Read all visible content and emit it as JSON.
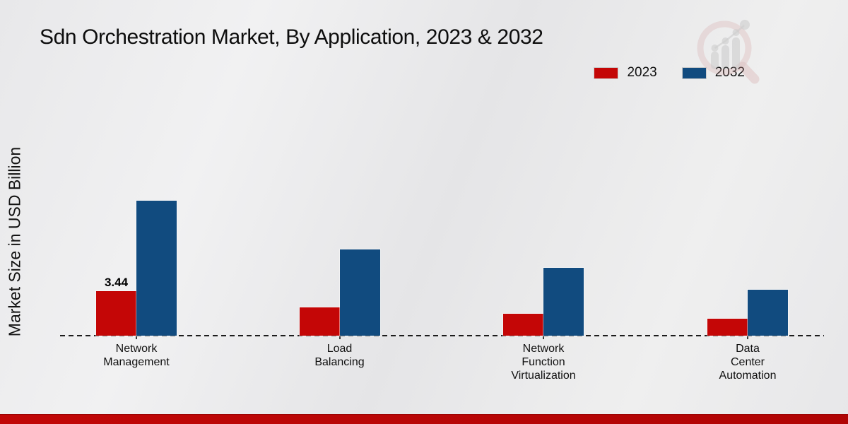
{
  "title": "Sdn Orchestration Market, By Application, 2023 & 2032",
  "y_axis_label": "Market Size in USD Billion",
  "legend": [
    {
      "label": "2023",
      "color": "#c40606"
    },
    {
      "label": "2032",
      "color": "#114b7f"
    }
  ],
  "colors": {
    "bar_2023": "#c40606",
    "bar_2032": "#114b7f",
    "footer_strip": "#b50505",
    "background": "#e9e9eb",
    "baseline": "#1c1c1c"
  },
  "chart_data": {
    "type": "bar",
    "title": "Sdn Orchestration Market, By Application, 2023 & 2032",
    "xlabel": "",
    "ylabel": "Market Size in USD Billion",
    "categories": [
      "Network Management",
      "Load Balancing",
      "Network Function Virtualization",
      "Data Center Automation"
    ],
    "category_lines": [
      [
        "Network",
        "Management"
      ],
      [
        "Load",
        "Balancing"
      ],
      [
        "Network",
        "Function",
        "Virtualization"
      ],
      [
        "Data",
        "Center",
        "Automation"
      ]
    ],
    "series": [
      {
        "name": "2023",
        "color": "#c40606",
        "values": [
          3.44,
          2.2,
          1.7,
          1.3
        ]
      },
      {
        "name": "2032",
        "color": "#114b7f",
        "values": [
          10.5,
          6.7,
          5.3,
          3.6
        ]
      }
    ],
    "bar_labels": [
      {
        "series_index": 0,
        "category_index": 0,
        "text": "3.44"
      }
    ],
    "ylim": [
      0,
      12
    ],
    "grid": false,
    "y_axis_line": "dashed",
    "legend_position": "top-right"
  }
}
